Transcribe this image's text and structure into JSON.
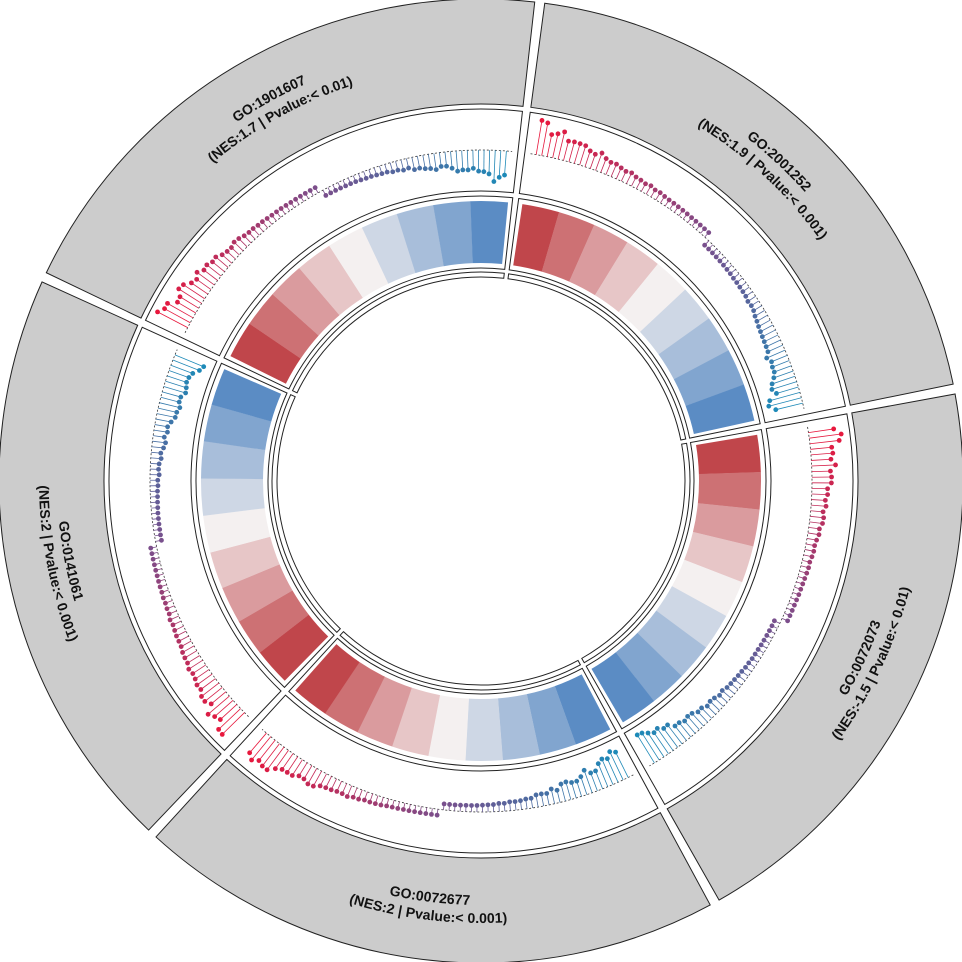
{
  "chart_data": {
    "type": "circos-gsea",
    "colors": {
      "outer_ring": "#cccccc",
      "track_background": "#ffffff",
      "track_border": "#222222",
      "up": "#e8173c",
      "mid": "#7a4f8c",
      "down": "#1d8ab8",
      "heat_high": "#c0464b",
      "heat_mid": "#f4f0f0",
      "heat_low": "#5b8cc4"
    },
    "sectors": [
      {
        "id": "GO:2001252",
        "label_line1": "GO:2001252",
        "label_line2": "(NES:1.9 | Pvalue:< 0.001)",
        "nes": 1.9,
        "pvalue": "< 0.001",
        "heatmap_direction": "up_to_down"
      },
      {
        "id": "GO:0072073",
        "label_line1": "GO:0072073",
        "label_line2": "(NES:-1.5 | Pvalue:< 0.01)",
        "nes": -1.5,
        "pvalue": "< 0.01",
        "heatmap_direction": "up_to_down"
      },
      {
        "id": "GO:0072677",
        "label_line1": "GO:0072677",
        "label_line2": "(NES:2 | Pvalue:< 0.001)",
        "nes": 2,
        "pvalue": "< 0.001",
        "heatmap_direction": "down_to_up"
      },
      {
        "id": "GO:0141061",
        "label_line1": "GO:0141061",
        "label_line2": "(NES:2 | Pvalue:< 0.001)",
        "nes": 2,
        "pvalue": "< 0.001",
        "heatmap_direction": "up_to_down"
      },
      {
        "id": "GO:1901607",
        "label_line1": "GO:1901607",
        "label_line2": "(NES:1.7 | Pvalue:< 0.01)",
        "nes": 1.7,
        "pvalue": "< 0.01",
        "heatmap_direction": "up_to_down"
      }
    ]
  }
}
